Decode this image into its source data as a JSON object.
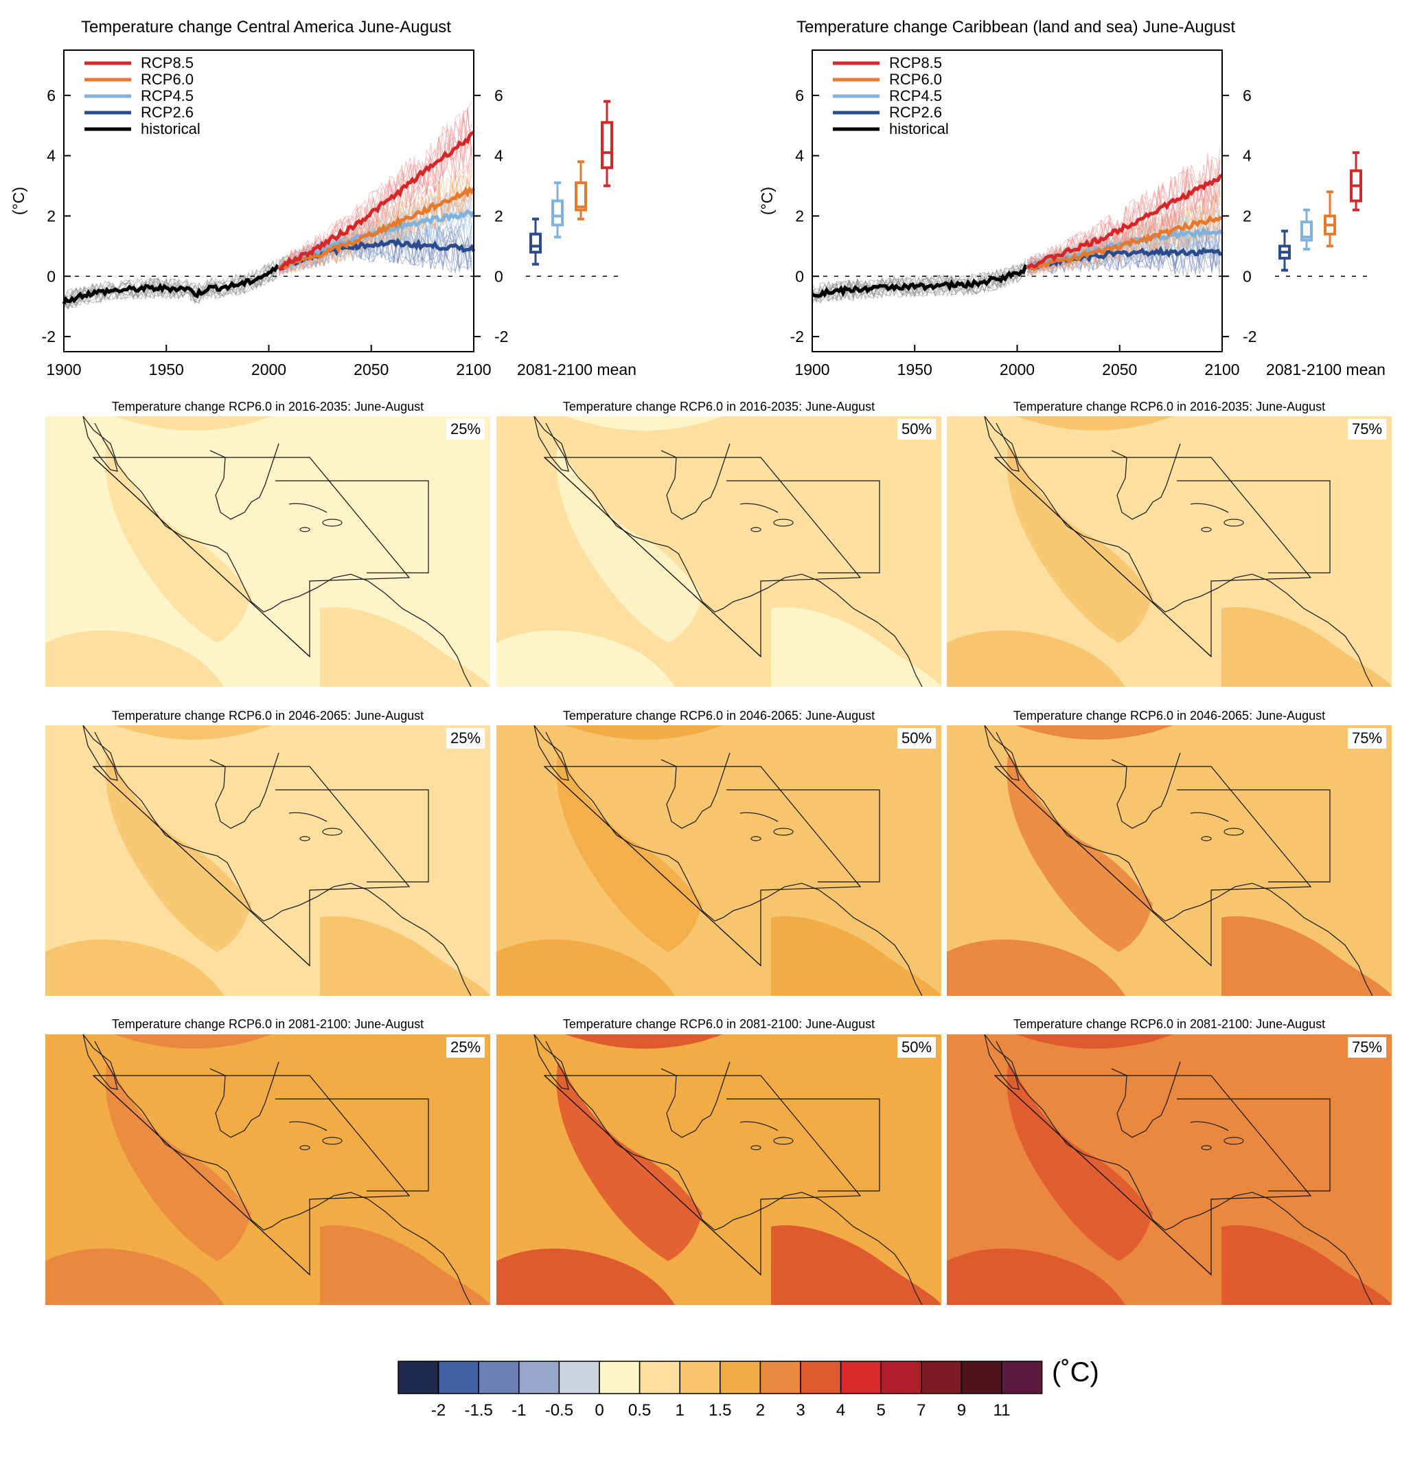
{
  "chart_data": [
    {
      "type": "line",
      "title": "Temperature change Central America June-August",
      "ylabel": "(°C)",
      "xlim": [
        1900,
        2100
      ],
      "ylim": [
        -2.5,
        7.5
      ],
      "x_ticks": [
        "1900",
        "1950",
        "2000",
        "2050",
        "2100"
      ],
      "y_ticks": [
        "-2",
        "0",
        "2",
        "4",
        "6"
      ],
      "right_y_ticks": [
        "-2",
        "0",
        "2",
        "4",
        "6"
      ],
      "boxplot_label": "2081-2100 mean",
      "legend": [
        "RCP8.5",
        "RCP6.0",
        "RCP4.5",
        "RCP2.6",
        "historical"
      ],
      "series": [
        {
          "name": "historical",
          "color": "#000000",
          "x": [
            1900,
            1910,
            1920,
            1930,
            1940,
            1950,
            1960,
            1965,
            1970,
            1980,
            1990,
            2000,
            2005
          ],
          "y": [
            -0.85,
            -0.6,
            -0.5,
            -0.45,
            -0.4,
            -0.4,
            -0.4,
            -0.6,
            -0.4,
            -0.35,
            -0.2,
            0.1,
            0.3
          ]
        },
        {
          "name": "RCP2.6",
          "color": "#2b4c8c",
          "x": [
            2005,
            2020,
            2040,
            2060,
            2080,
            2100
          ],
          "y": [
            0.3,
            0.65,
            1.0,
            1.1,
            1.0,
            0.9
          ]
        },
        {
          "name": "RCP4.5",
          "color": "#7fb2dc",
          "x": [
            2005,
            2020,
            2040,
            2060,
            2080,
            2100
          ],
          "y": [
            0.3,
            0.7,
            1.2,
            1.6,
            1.9,
            2.1
          ]
        },
        {
          "name": "RCP6.0",
          "color": "#e57a2e",
          "x": [
            2005,
            2020,
            2040,
            2060,
            2080,
            2100
          ],
          "y": [
            0.3,
            0.6,
            1.1,
            1.7,
            2.3,
            2.9
          ]
        },
        {
          "name": "RCP8.5",
          "color": "#d62728",
          "x": [
            2005,
            2020,
            2040,
            2060,
            2080,
            2100
          ],
          "y": [
            0.3,
            0.8,
            1.6,
            2.6,
            3.7,
            4.7
          ]
        }
      ],
      "boxplots": [
        {
          "name": "RCP2.6",
          "color": "#2b4c8c",
          "min": 0.4,
          "q1": 0.8,
          "median": 1.0,
          "q3": 1.4,
          "max": 1.9
        },
        {
          "name": "RCP4.5",
          "color": "#7fb2dc",
          "min": 1.3,
          "q1": 1.7,
          "median": 2.0,
          "q3": 2.5,
          "max": 3.1
        },
        {
          "name": "RCP6.0",
          "color": "#e57a2e",
          "min": 1.9,
          "q1": 2.2,
          "median": 2.3,
          "q3": 3.1,
          "max": 3.8
        },
        {
          "name": "RCP8.5",
          "color": "#d62728",
          "min": 3.0,
          "q1": 3.6,
          "median": 4.1,
          "q3": 5.1,
          "max": 5.8
        }
      ]
    },
    {
      "type": "line",
      "title": "Temperature change Caribbean (land and sea) June-August",
      "ylabel": "(°C)",
      "xlim": [
        1900,
        2100
      ],
      "ylim": [
        -2.5,
        7.5
      ],
      "x_ticks": [
        "1900",
        "1950",
        "2000",
        "2050",
        "2100"
      ],
      "y_ticks": [
        "-2",
        "0",
        "2",
        "4",
        "6"
      ],
      "right_y_ticks": [
        "-2",
        "0",
        "2",
        "4",
        "6"
      ],
      "boxplot_label": "2081-2100 mean",
      "legend": [
        "RCP8.5",
        "RCP6.0",
        "RCP4.5",
        "RCP2.6",
        "historical"
      ],
      "series": [
        {
          "name": "historical",
          "color": "#000000",
          "x": [
            1900,
            1910,
            1920,
            1930,
            1940,
            1950,
            1960,
            1970,
            1980,
            1990,
            2000,
            2005
          ],
          "y": [
            -0.6,
            -0.5,
            -0.45,
            -0.4,
            -0.35,
            -0.35,
            -0.3,
            -0.3,
            -0.25,
            -0.1,
            0.1,
            0.3
          ]
        },
        {
          "name": "RCP2.6",
          "color": "#2b4c8c",
          "x": [
            2005,
            2020,
            2040,
            2060,
            2080,
            2100
          ],
          "y": [
            0.3,
            0.5,
            0.7,
            0.8,
            0.8,
            0.8
          ]
        },
        {
          "name": "RCP4.5",
          "color": "#7fb2dc",
          "x": [
            2005,
            2020,
            2040,
            2060,
            2080,
            2100
          ],
          "y": [
            0.3,
            0.6,
            0.9,
            1.2,
            1.4,
            1.5
          ]
        },
        {
          "name": "RCP6.0",
          "color": "#e57a2e",
          "x": [
            2005,
            2020,
            2040,
            2060,
            2080,
            2100
          ],
          "y": [
            0.3,
            0.5,
            0.8,
            1.2,
            1.6,
            2.0
          ]
        },
        {
          "name": "RCP8.5",
          "color": "#d62728",
          "x": [
            2005,
            2020,
            2040,
            2060,
            2080,
            2100
          ],
          "y": [
            0.3,
            0.7,
            1.2,
            1.9,
            2.6,
            3.3
          ]
        }
      ],
      "boxplots": [
        {
          "name": "RCP2.6",
          "color": "#2b4c8c",
          "min": 0.2,
          "q1": 0.6,
          "median": 0.8,
          "q3": 1.0,
          "max": 1.5
        },
        {
          "name": "RCP4.5",
          "color": "#7fb2dc",
          "min": 0.9,
          "q1": 1.2,
          "median": 1.3,
          "q3": 1.8,
          "max": 2.2
        },
        {
          "name": "RCP6.0",
          "color": "#e57a2e",
          "min": 1.0,
          "q1": 1.4,
          "median": 1.7,
          "q3": 2.0,
          "max": 2.8
        },
        {
          "name": "RCP8.5",
          "color": "#d62728",
          "min": 2.2,
          "q1": 2.5,
          "median": 3.0,
          "q3": 3.5,
          "max": 4.1
        }
      ]
    }
  ],
  "maps": [
    {
      "title": "Temperature change RCP6.0 in 2016-2035: June-August",
      "percentile": "25%",
      "base_color": "#fdf4c8",
      "patch_color": "#fde0a0"
    },
    {
      "title": "Temperature change RCP6.0 in 2016-2035: June-August",
      "percentile": "50%",
      "base_color": "#fde0a0",
      "patch_color": "#fdf4c8"
    },
    {
      "title": "Temperature change RCP6.0 in 2016-2035: June-August",
      "percentile": "75%",
      "base_color": "#fde0a0",
      "patch_color": "#f8c56f"
    },
    {
      "title": "Temperature change RCP6.0 in 2046-2065: June-August",
      "percentile": "25%",
      "base_color": "#fde0a0",
      "patch_color": "#f8c56f"
    },
    {
      "title": "Temperature change RCP6.0 in 2046-2065: June-August",
      "percentile": "50%",
      "base_color": "#f8c56f",
      "patch_color": "#f2ac45"
    },
    {
      "title": "Temperature change RCP6.0 in 2046-2065: June-August",
      "percentile": "75%",
      "base_color": "#f8c56f",
      "patch_color": "#ea8840"
    },
    {
      "title": "Temperature change RCP6.0 in 2081-2100: June-August",
      "percentile": "25%",
      "base_color": "#f2ac45",
      "patch_color": "#ea8840"
    },
    {
      "title": "Temperature change RCP6.0 in 2081-2100: June-August",
      "percentile": "50%",
      "base_color": "#f2ac45",
      "patch_color": "#e05a30"
    },
    {
      "title": "Temperature change RCP6.0 in 2081-2100: June-August",
      "percentile": "75%",
      "base_color": "#ea8840",
      "patch_color": "#e05a30"
    }
  ],
  "colorbar": {
    "unit": "(˚C)",
    "colors": [
      "#1f2a4f",
      "#4461a4",
      "#6c80b5",
      "#97a7cc",
      "#cdd5e3",
      "#fdf4c8",
      "#fde0a0",
      "#f8c56f",
      "#f2ac45",
      "#ea8840",
      "#e05a30",
      "#d82a2a",
      "#b01e2c",
      "#7c1c24",
      "#52141c",
      "#5b1b3e"
    ],
    "labels": [
      "-2",
      "-1.5",
      "-1",
      "-0.5",
      "0",
      "0.5",
      "1",
      "1.5",
      "2",
      "3",
      "4",
      "5",
      "7",
      "9",
      "11"
    ]
  }
}
